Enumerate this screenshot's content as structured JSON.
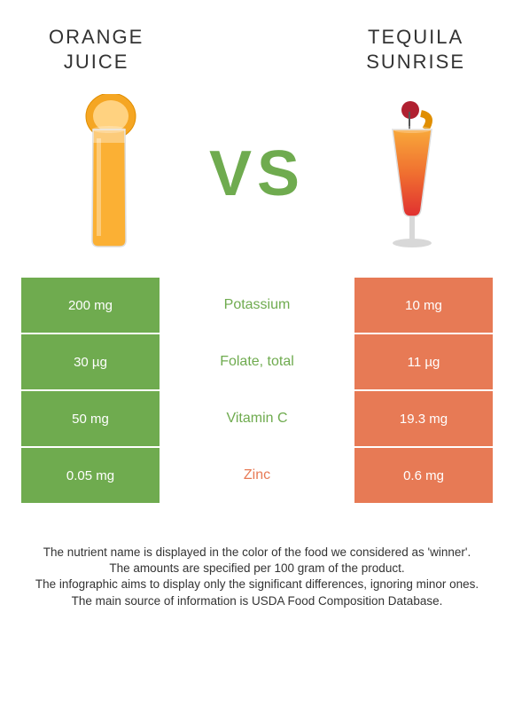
{
  "header": {
    "left_title": "ORANGE\nJUICE",
    "right_title": "TEQUILA\nSUNRISE"
  },
  "vs_label": "VS",
  "colors": {
    "left_cell": "#6fab4f",
    "right_cell": "#e77a55",
    "left_winner_text": "#6fab4f",
    "right_winner_text": "#e77a55",
    "vs_color": "#6fab4f",
    "title_color": "#333333",
    "footnote_color": "#333333",
    "background": "#ffffff"
  },
  "table": {
    "rows": [
      {
        "left": "200 mg",
        "label": "Potassium",
        "right": "10 mg",
        "winner": "left"
      },
      {
        "left": "30 µg",
        "label": "Folate, total",
        "right": "11 µg",
        "winner": "left"
      },
      {
        "left": "50 mg",
        "label": "Vitamin C",
        "right": "19.3 mg",
        "winner": "left"
      },
      {
        "left": "0.05 mg",
        "label": "Zinc",
        "right": "0.6 mg",
        "winner": "right"
      }
    ]
  },
  "footnotes": [
    "The nutrient name is displayed in the color of the food we considered as 'winner'.",
    "The amounts are specified per 100 gram of the product.",
    "The infographic aims to display only the significant differences, ignoring minor ones.",
    "The main source of information is USDA Food Composition Database."
  ]
}
